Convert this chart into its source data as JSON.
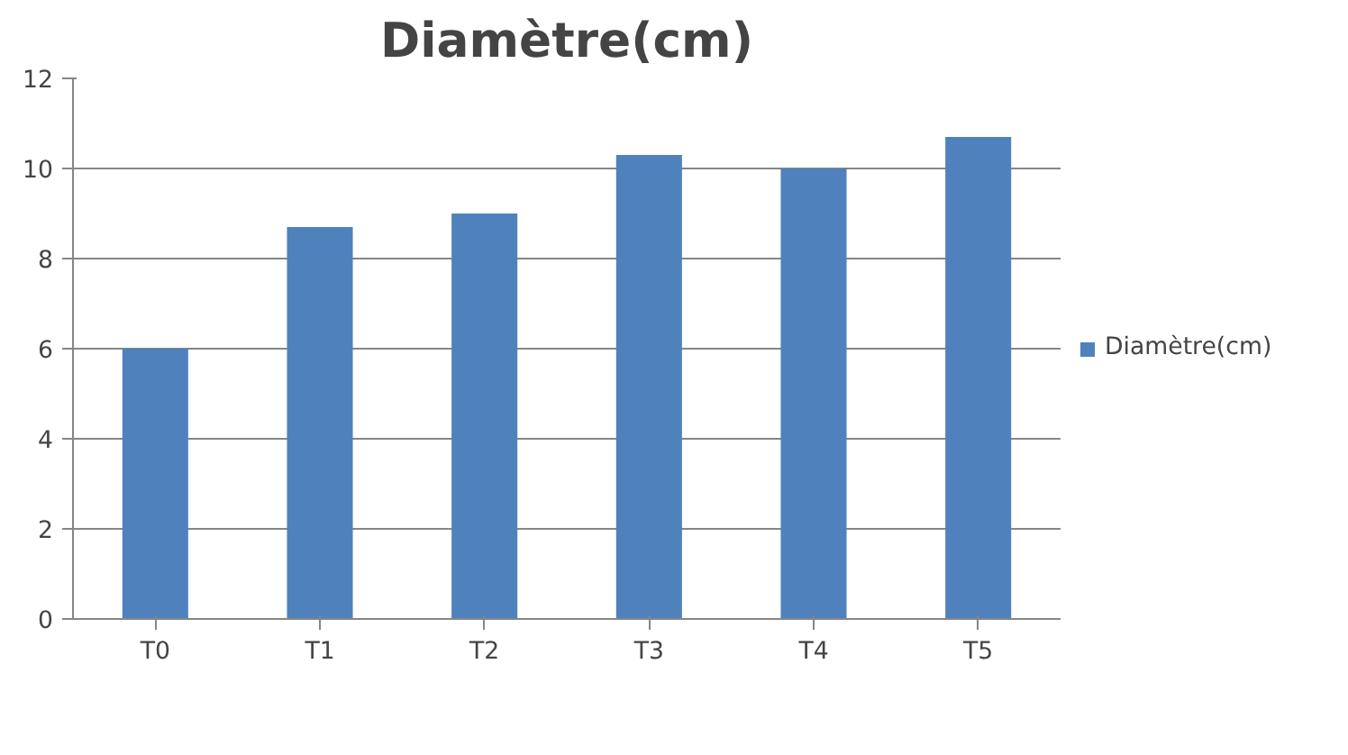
{
  "chart_data": {
    "type": "bar",
    "title": "Diamètre(cm)",
    "categories": [
      "T0",
      "T1",
      "T2",
      "T3",
      "T4",
      "T5"
    ],
    "series": [
      {
        "name": "Diamètre(cm)",
        "color": "#4f81bd",
        "values": [
          6,
          8.7,
          9,
          10.3,
          10,
          10.7
        ]
      }
    ],
    "ylim": [
      0,
      12
    ],
    "yticks": [
      0,
      2,
      4,
      6,
      8,
      10,
      12
    ],
    "grid": "y",
    "legend": "right"
  }
}
